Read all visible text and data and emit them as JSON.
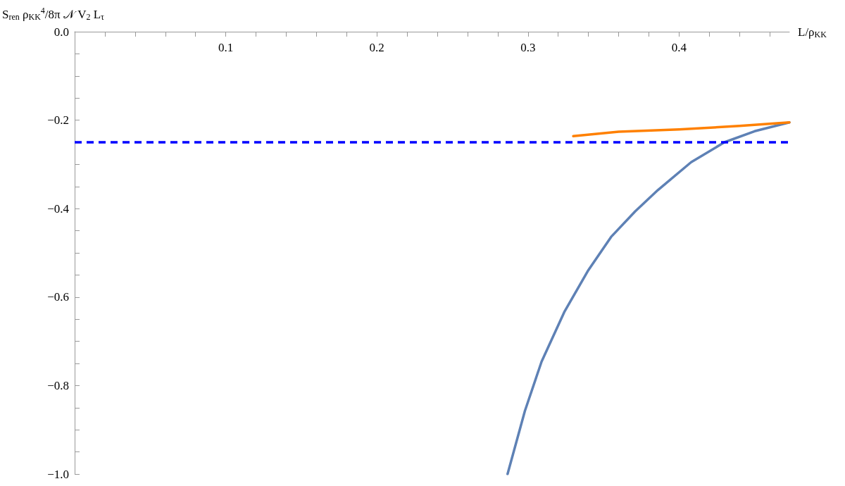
{
  "chart_data": {
    "type": "line",
    "xlabel": "L/ρ$_{KK}$",
    "ylabel": "S$_{ren}$ ρ$_{KK}$$^{4}$/8π 𝒩 V$_{2}$ L$_{τ}$",
    "xlim": [
      0,
      0.473
    ],
    "ylim": [
      -1.0,
      0
    ],
    "xticks": [
      {
        "value": 0.02,
        "label": null
      },
      {
        "value": 0.04,
        "label": null
      },
      {
        "value": 0.06,
        "label": null
      },
      {
        "value": 0.08,
        "label": null
      },
      0.1,
      {
        "value": 0.12,
        "label": null
      },
      {
        "value": 0.14,
        "label": null
      },
      {
        "value": 0.16,
        "label": null
      },
      {
        "value": 0.18,
        "label": null
      },
      0.2,
      {
        "value": 0.22,
        "label": null
      },
      {
        "value": 0.24,
        "label": null
      },
      {
        "value": 0.26,
        "label": null
      },
      {
        "value": 0.28,
        "label": null
      },
      0.3,
      {
        "value": 0.32,
        "label": null
      },
      {
        "value": 0.34,
        "label": null
      },
      {
        "value": 0.36,
        "label": null
      },
      {
        "value": 0.38,
        "label": null
      },
      0.4,
      {
        "value": 0.42,
        "label": null
      },
      {
        "value": 0.44,
        "label": null
      },
      {
        "value": 0.46,
        "label": null
      }
    ],
    "yticks": [
      {
        "value": 0,
        "label": "0.0"
      },
      {
        "value": -0.05,
        "label": null
      },
      {
        "value": -0.1,
        "label": null
      },
      {
        "value": -0.15,
        "label": null
      },
      {
        "value": -0.2,
        "label": "−0.2"
      },
      {
        "value": -0.25,
        "label": null
      },
      {
        "value": -0.3,
        "label": null
      },
      {
        "value": -0.35,
        "label": null
      },
      {
        "value": -0.4,
        "label": "−0.4"
      },
      {
        "value": -0.45,
        "label": null
      },
      {
        "value": -0.5,
        "label": null
      },
      {
        "value": -0.55,
        "label": null
      },
      {
        "value": -0.6,
        "label": "−0.6"
      },
      {
        "value": -0.65,
        "label": null
      },
      {
        "value": -0.7,
        "label": null
      },
      {
        "value": -0.75,
        "label": null
      },
      {
        "value": -0.8,
        "label": "−0.8"
      },
      {
        "value": -0.85,
        "label": null
      },
      {
        "value": -0.9,
        "label": null
      },
      {
        "value": -0.95,
        "label": null
      },
      {
        "value": -1.0,
        "label": "−1.0"
      }
    ],
    "grid": false,
    "marker": "none",
    "line_style": "solid",
    "series": [
      {
        "color": "#5e81b5",
        "x": [
          0.2865,
          0.298,
          0.309,
          0.324,
          0.34,
          0.355,
          0.371,
          0.386,
          0.408,
          0.43,
          0.45,
          0.473
        ],
        "values": [
          -1.0,
          -0.857,
          -0.746,
          -0.634,
          -0.539,
          -0.464,
          -0.406,
          -0.358,
          -0.295,
          -0.25,
          -0.225,
          -0.205
        ]
      },
      {
        "color": "#ff8000",
        "x": [
          0.33,
          0.36,
          0.4,
          0.44,
          0.473
        ],
        "values": [
          -0.236,
          -0.226,
          -0.221,
          -0.213,
          -0.205
        ]
      }
    ],
    "ref_lines": [
      {
        "axis": "y",
        "value": -0.25,
        "color": "#0000ff",
        "line_style": "dashed"
      }
    ]
  }
}
